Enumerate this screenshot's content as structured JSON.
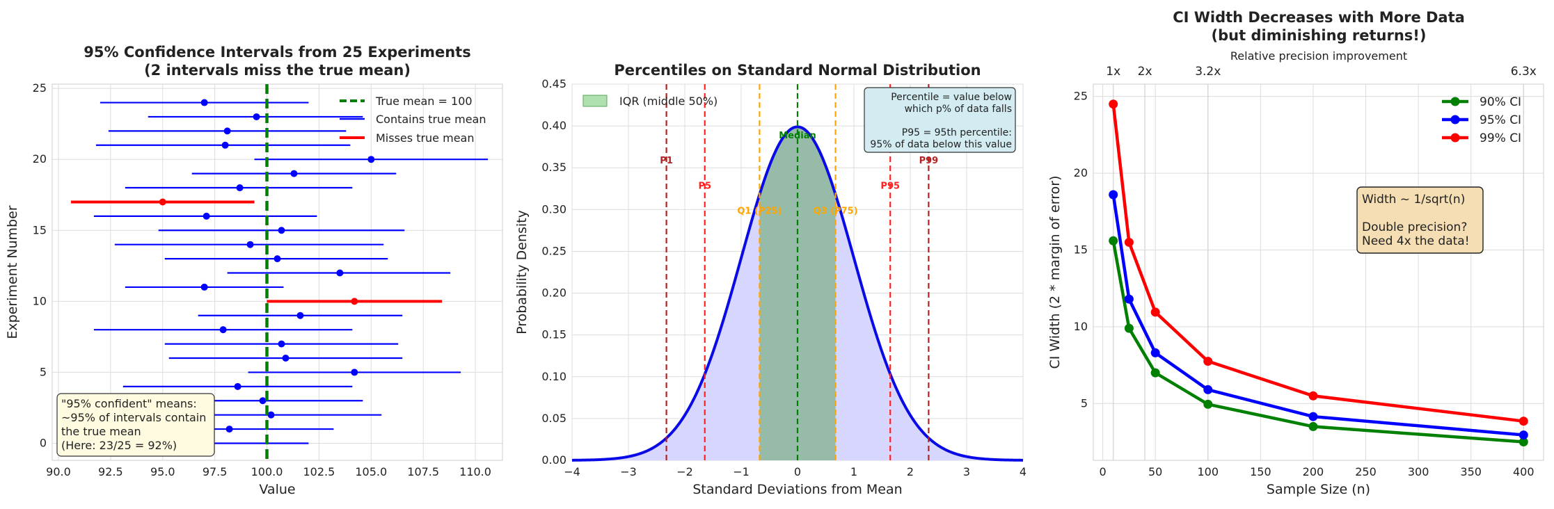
{
  "colors": {
    "blue": "#0000ff",
    "red": "#ff0000",
    "green": "#008000",
    "darkred": "#b22222",
    "orange": "#ffa500",
    "panel": "#eaeaf2",
    "grid": "#d0d0d0"
  },
  "chart_data": [
    {
      "type": "scatter",
      "title_line1": "95% Confidence Intervals from 25 Experiments",
      "title_line2": "(2 intervals miss the true mean)",
      "xlabel": "Value",
      "ylabel": "Experiment Number",
      "xlim": [
        89.7,
        111.3
      ],
      "ylim": [
        -1.2,
        25.3
      ],
      "xticks": [
        90.0,
        92.5,
        95.0,
        97.5,
        100.0,
        102.5,
        105.0,
        107.5,
        110.0
      ],
      "xtick_labels": [
        "90.0",
        "92.5",
        "95.0",
        "97.5",
        "100.0",
        "102.5",
        "105.0",
        "107.5",
        "110.0"
      ],
      "yticks": [
        0,
        5,
        10,
        15,
        20,
        25
      ],
      "ytick_labels": [
        "0",
        "5",
        "10",
        "15",
        "20",
        "25"
      ],
      "true_mean": 100,
      "legend": [
        "True mean = 100",
        "Contains true mean",
        "Misses true mean"
      ],
      "legend_position": "top-right",
      "annotation": [
        "\"95% confident\" means:",
        "~95% of intervals contain",
        "the true mean",
        "(Here: 23/25 = 92%)"
      ],
      "intervals": [
        {
          "exp": 0,
          "mean": 97.2,
          "low": 94.5,
          "high": 102.0,
          "contains": true
        },
        {
          "exp": 1,
          "mean": 98.2,
          "low": 93.8,
          "high": 103.2,
          "contains": true
        },
        {
          "exp": 2,
          "mean": 100.2,
          "low": 95.0,
          "high": 105.5,
          "contains": true
        },
        {
          "exp": 3,
          "mean": 99.8,
          "low": 95.1,
          "high": 104.6,
          "contains": true
        },
        {
          "exp": 4,
          "mean": 98.6,
          "low": 93.1,
          "high": 104.1,
          "contains": true
        },
        {
          "exp": 5,
          "mean": 104.2,
          "low": 99.1,
          "high": 109.3,
          "contains": true
        },
        {
          "exp": 6,
          "mean": 100.9,
          "low": 95.3,
          "high": 106.5,
          "contains": true
        },
        {
          "exp": 7,
          "mean": 100.7,
          "low": 95.1,
          "high": 106.3,
          "contains": true
        },
        {
          "exp": 8,
          "mean": 97.9,
          "low": 91.7,
          "high": 104.1,
          "contains": true
        },
        {
          "exp": 9,
          "mean": 101.6,
          "low": 96.7,
          "high": 106.5,
          "contains": true
        },
        {
          "exp": 10,
          "mean": 104.2,
          "low": 100.0,
          "high": 108.4,
          "contains": false
        },
        {
          "exp": 11,
          "mean": 97.0,
          "low": 93.2,
          "high": 100.8,
          "contains": true
        },
        {
          "exp": 12,
          "mean": 103.5,
          "low": 98.1,
          "high": 108.8,
          "contains": true
        },
        {
          "exp": 13,
          "mean": 100.5,
          "low": 95.1,
          "high": 105.8,
          "contains": true
        },
        {
          "exp": 14,
          "mean": 99.2,
          "low": 92.7,
          "high": 105.6,
          "contains": true
        },
        {
          "exp": 15,
          "mean": 100.7,
          "low": 94.8,
          "high": 106.6,
          "contains": true
        },
        {
          "exp": 16,
          "mean": 97.1,
          "low": 91.7,
          "high": 102.4,
          "contains": true
        },
        {
          "exp": 17,
          "mean": 95.0,
          "low": 90.6,
          "high": 99.4,
          "contains": false
        },
        {
          "exp": 18,
          "mean": 98.7,
          "low": 93.2,
          "high": 104.1,
          "contains": true
        },
        {
          "exp": 19,
          "mean": 101.3,
          "low": 96.4,
          "high": 106.2,
          "contains": true
        },
        {
          "exp": 20,
          "mean": 105.0,
          "low": 99.4,
          "high": 110.6,
          "contains": true
        },
        {
          "exp": 21,
          "mean": 98.0,
          "low": 91.8,
          "high": 104.0,
          "contains": true
        },
        {
          "exp": 22,
          "mean": 98.1,
          "low": 92.4,
          "high": 103.8,
          "contains": true
        },
        {
          "exp": 23,
          "mean": 99.5,
          "low": 94.3,
          "high": 104.6,
          "contains": true
        },
        {
          "exp": 24,
          "mean": 97.0,
          "low": 92.0,
          "high": 102.0,
          "contains": true
        }
      ]
    },
    {
      "type": "area",
      "title": "Percentiles on Standard Normal Distribution",
      "xlabel": "Standard Deviations from Mean",
      "ylabel": "Probability Density",
      "xlim": [
        -4,
        4
      ],
      "ylim": [
        0,
        0.45
      ],
      "xticks": [
        -4,
        -3,
        -2,
        -1,
        0,
        1,
        2,
        3,
        4
      ],
      "xtick_labels": [
        "−4",
        "−3",
        "−2",
        "−1",
        "0",
        "1",
        "2",
        "3",
        "4"
      ],
      "yticks": [
        0,
        0.05,
        0.1,
        0.15,
        0.2,
        0.25,
        0.3,
        0.35,
        0.4,
        0.45
      ],
      "ytick_labels": [
        "0.00",
        "0.05",
        "0.10",
        "0.15",
        "0.20",
        "0.25",
        "0.30",
        "0.35",
        "0.40",
        "0.45"
      ],
      "legend": [
        "IQR (middle 50%)"
      ],
      "legend_position": "top-left",
      "iqr": [
        -0.674,
        0.674
      ],
      "percentile_lines": [
        {
          "label": "P1",
          "z": -2.326,
          "label_y": 0.355,
          "color": "#b22222"
        },
        {
          "label": "P5",
          "z": -1.645,
          "label_y": 0.325,
          "color": "#ff2020"
        },
        {
          "label": "Q1 (P25)",
          "z": -0.674,
          "label_y": 0.295,
          "color": "#ffa500"
        },
        {
          "label": "Median",
          "z": 0,
          "label_y": 0.385,
          "color": "#008000"
        },
        {
          "label": "Q3 (P75)",
          "z": 0.674,
          "label_y": 0.295,
          "color": "#ffa500"
        },
        {
          "label": "P95",
          "z": 1.645,
          "label_y": 0.325,
          "color": "#ff2020"
        },
        {
          "label": "P99",
          "z": 2.326,
          "label_y": 0.355,
          "color": "#b22222"
        }
      ],
      "annotation": [
        "Percentile = value below",
        "which p% of data falls",
        "",
        "P95 = 95th percentile:",
        "95% of data below this value"
      ]
    },
    {
      "type": "line",
      "title_line1": "CI Width Decreases with More Data",
      "title_line2": "(but diminishing returns!)",
      "top_axis_label": "Relative precision improvement",
      "top_ticks": [
        {
          "n": 10,
          "label": "1x"
        },
        {
          "n": 40,
          "label": "2x"
        },
        {
          "n": 100,
          "label": "3.2x"
        },
        {
          "n": 400,
          "label": "6.3x"
        }
      ],
      "xlabel": "Sample Size (n)",
      "ylabel": "CI Width (2 * margin of error)",
      "xlim": [
        -9,
        419
      ],
      "ylim": [
        1.3,
        25.8
      ],
      "xticks": [
        0,
        50,
        100,
        150,
        200,
        250,
        300,
        350,
        400
      ],
      "xtick_labels": [
        "0",
        "50",
        "100",
        "150",
        "200",
        "250",
        "300",
        "350",
        "400"
      ],
      "yticks": [
        5,
        10,
        15,
        20,
        25
      ],
      "ytick_labels": [
        "5",
        "10",
        "15",
        "20",
        "25"
      ],
      "x": [
        10,
        25,
        50,
        100,
        200,
        400
      ],
      "series": [
        {
          "name": "90% CI",
          "color": "#008000",
          "values": [
            15.6,
            9.9,
            7.0,
            4.95,
            3.5,
            2.5
          ]
        },
        {
          "name": "95% CI",
          "color": "#0000ff",
          "values": [
            18.6,
            11.8,
            8.3,
            5.9,
            4.15,
            2.95
          ]
        },
        {
          "name": "99% CI",
          "color": "#ff0000",
          "values": [
            24.5,
            15.5,
            10.95,
            7.75,
            5.5,
            3.85
          ]
        }
      ],
      "legend_position": "top-right",
      "annotation": [
        "Width ~ 1/sqrt(n)",
        "",
        "Double precision?",
        "Need 4x the data!"
      ]
    }
  ]
}
